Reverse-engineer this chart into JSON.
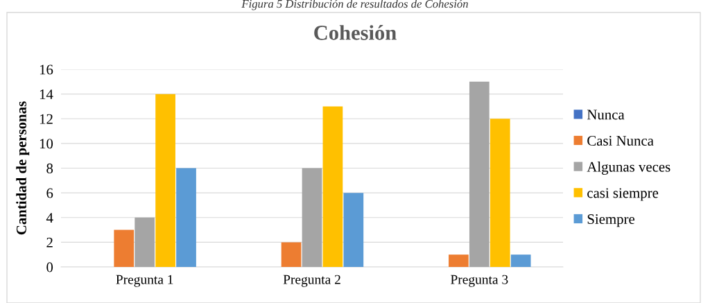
{
  "chart_data": {
    "type": "bar",
    "title": "Cohesión",
    "ylabel": "Cantidad de personas",
    "annotations": [
      "Figura 5 Distribución de resultados de Cohesión"
    ],
    "categories": [
      "Pregunta 1",
      "Pregunta 2",
      "Pregunta 3"
    ],
    "series": [
      {
        "name": "Nunca",
        "color": "#4472c4",
        "values": [
          0,
          0,
          0
        ]
      },
      {
        "name": "Casi Nunca",
        "color": "#ed7d31",
        "values": [
          3,
          2,
          1
        ]
      },
      {
        "name": "Algunas veces",
        "color": "#a5a5a5",
        "values": [
          4,
          8,
          15
        ]
      },
      {
        "name": "casi siempre",
        "color": "#ffc000",
        "values": [
          14,
          13,
          12
        ]
      },
      {
        "name": "Siempre",
        "color": "#5b9bd5",
        "values": [
          8,
          6,
          1
        ]
      }
    ],
    "ylim": [
      0,
      16
    ],
    "yticks": [
      0,
      2,
      4,
      6,
      8,
      10,
      12,
      14,
      16
    ],
    "grid": "y",
    "legend": "right"
  }
}
